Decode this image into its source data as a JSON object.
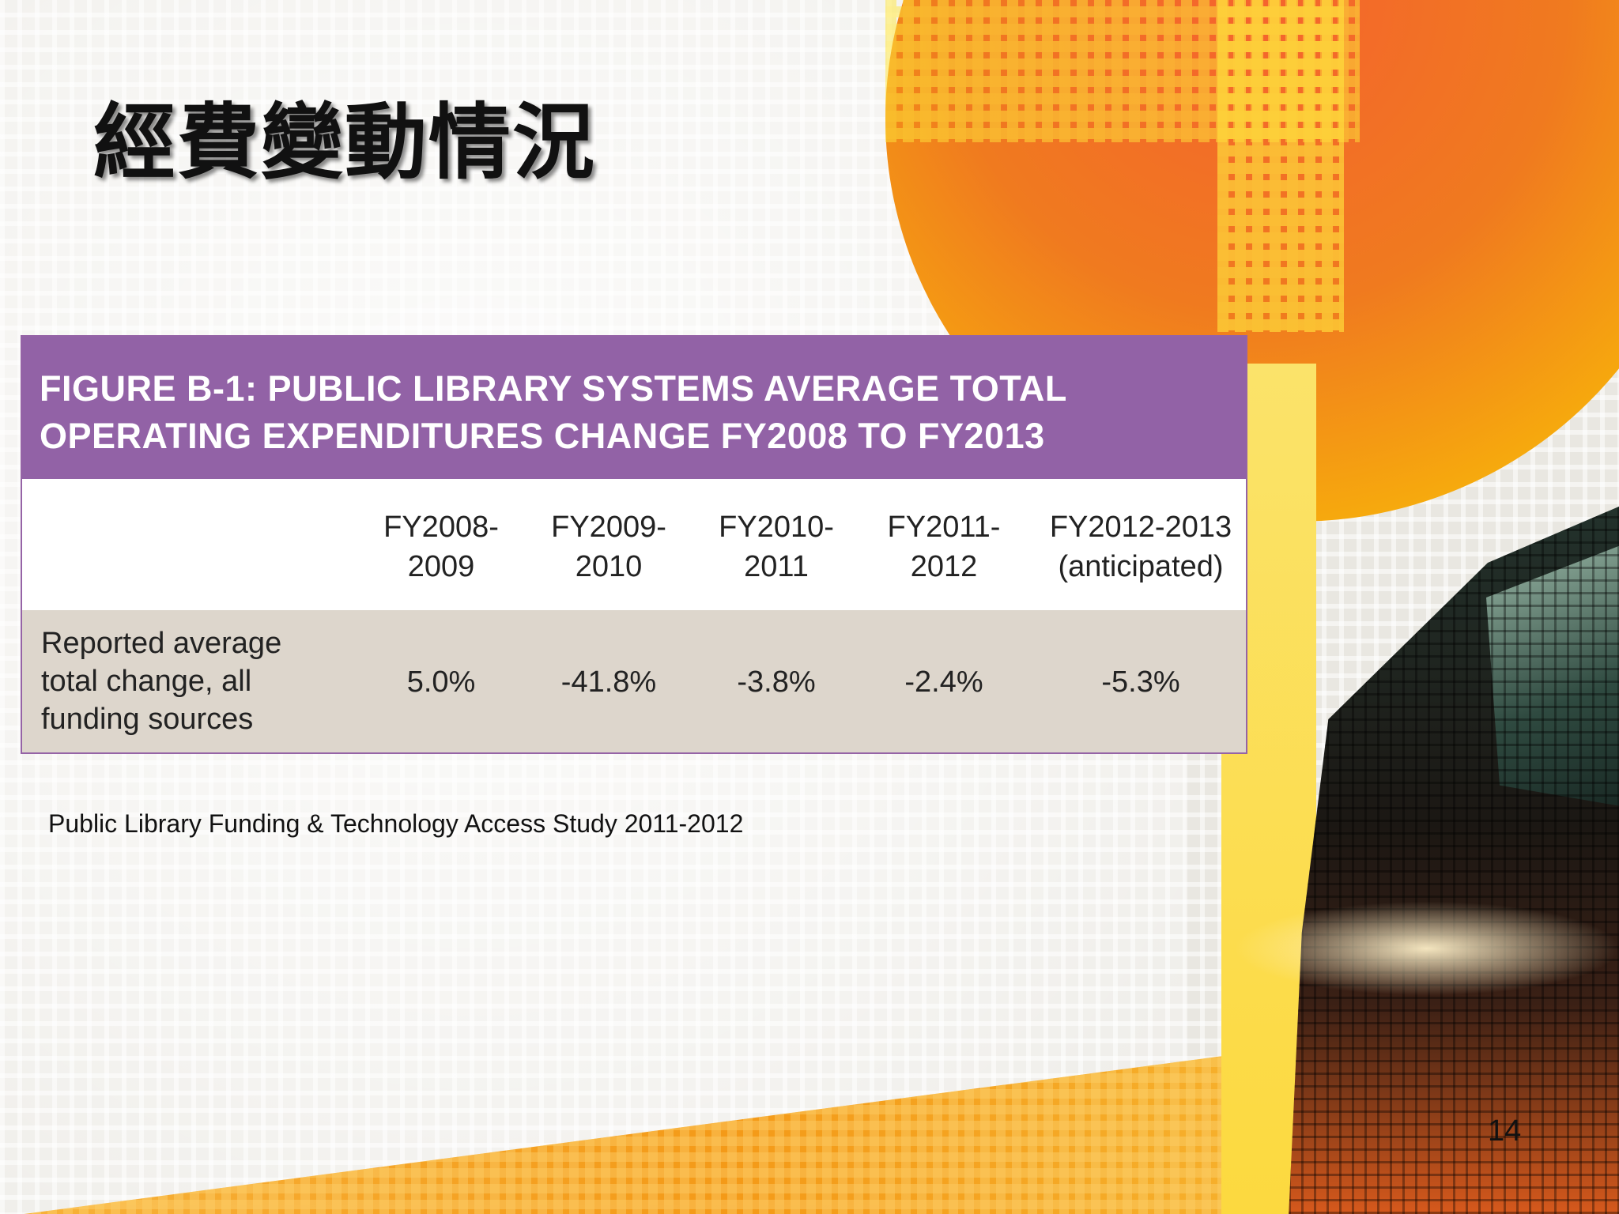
{
  "slide": {
    "title": "經費變動情況",
    "page_number": "14"
  },
  "figure": {
    "heading_line1": "FIGURE B-1: PUBLIC LIBRARY SYSTEMS AVERAGE TOTAL",
    "heading_line2": "OPERATING EXPENDITURES CHANGE FY2008 TO FY2013",
    "columns": [
      {
        "line1": "FY2008-",
        "line2": "2009"
      },
      {
        "line1": "FY2009-",
        "line2": "2010"
      },
      {
        "line1": "FY2010-",
        "line2": "2011"
      },
      {
        "line1": "FY2011-",
        "line2": "2012"
      },
      {
        "line1": "FY2012-2013",
        "line2": "(anticipated)"
      }
    ],
    "row": {
      "label_line1": "Reported average",
      "label_line2": "total change, all",
      "label_line3": "funding sources",
      "values": [
        "5.0%",
        "-41.8%",
        "-3.8%",
        "-2.4%",
        "-5.3%"
      ]
    }
  },
  "source": "Public Library Funding & Technology Access Study 2011-2012",
  "colors": {
    "figure_header": "#9262a6",
    "data_row": "#ddd6cc",
    "accent_orange": "#f07a1f",
    "accent_yellow": "#fbcf05"
  }
}
